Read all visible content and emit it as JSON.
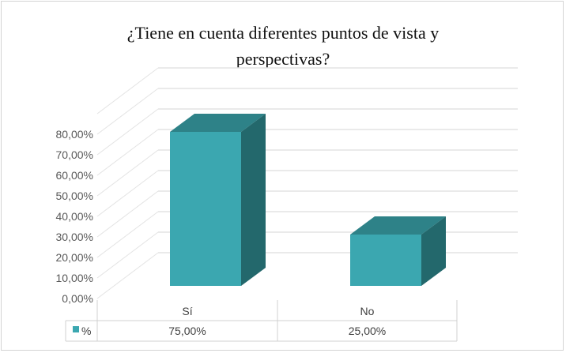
{
  "chart_data": {
    "type": "bar",
    "style": "3d-column with data table",
    "title": "¿Tiene en cuenta diferentes puntos de vista y perspectivas?",
    "title_lines": [
      "¿Tiene en cuenta diferentes puntos de vista y",
      "perspectivas?"
    ],
    "categories": [
      "Sí",
      "No"
    ],
    "series": [
      {
        "name": "%",
        "values": [
          75,
          25
        ],
        "labels": [
          "75,00%",
          "25,00%"
        ],
        "color": "#3ba7b0",
        "side_color": "#23686c",
        "top_color": "#2e8288"
      }
    ],
    "ylim": [
      0,
      80
    ],
    "yticks": [
      "0,00%",
      "10,00%",
      "20,00%",
      "30,00%",
      "40,00%",
      "50,00%",
      "60,00%",
      "70,00%",
      "80,00%"
    ],
    "grid": true,
    "legend": "data-table"
  }
}
